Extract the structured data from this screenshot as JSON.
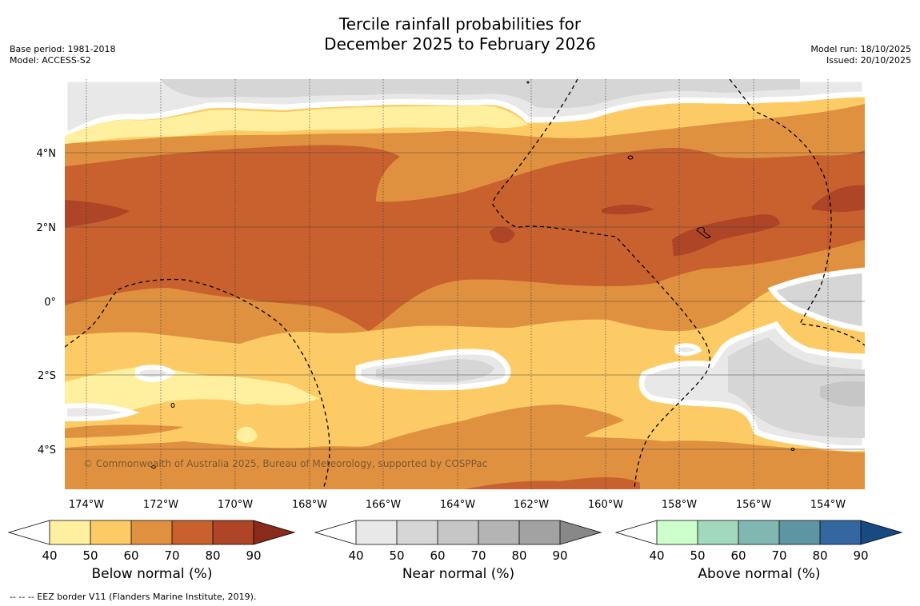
{
  "title_line1": "Tercile rainfall probabilities for",
  "title_line2": "December 2025 to February 2026",
  "base_period": "Base period: 1981-2018",
  "model": "Model: ACCESS-S2",
  "model_run": "Model run: 18/10/2025",
  "issued": "Issued: 20/10/2025",
  "copyright": "© Commonwealth of Australia 2025, Bureau of Meteorology, supported by COSPPac",
  "footnote": "--  --  -- EEZ border V11 (Flanders Marine Institute, 2019).",
  "lon_labels": [
    "174°W",
    "172°W",
    "170°W",
    "168°W",
    "166°W",
    "164°W",
    "162°W",
    "160°W",
    "158°W",
    "156°W",
    "154°W"
  ],
  "lat_labels": [
    "4°N",
    "2°N",
    "0°",
    "2°S",
    "4°S"
  ],
  "colorbars": [
    {
      "label": "Below normal (%)",
      "ticks": [
        "40",
        "50",
        "60",
        "70",
        "80",
        "90"
      ],
      "colors": [
        "#ffffff",
        "#fff0a0",
        "#fdcb66",
        "#e0913f",
        "#c8612e",
        "#ad4526",
        "#8a2a1a"
      ]
    },
    {
      "label": "Near normal (%)",
      "ticks": [
        "40",
        "50",
        "60",
        "70",
        "80",
        "90"
      ],
      "colors": [
        "#ffffff",
        "#e8e8e8",
        "#d6d6d6",
        "#c6c6c6",
        "#b4b4b4",
        "#a2a2a2",
        "#888888"
      ]
    },
    {
      "label": "Above normal (%)",
      "ticks": [
        "40",
        "50",
        "60",
        "70",
        "80",
        "90"
      ],
      "colors": [
        "#ffffff",
        "#ccffcc",
        "#a2d9bd",
        "#80b7b0",
        "#5e95a2",
        "#3466a0",
        "#174a80"
      ]
    }
  ],
  "map_colors": {
    "below50": "#fff0a0",
    "below60": "#fdcb66",
    "below70": "#e0913f",
    "below80": "#c8612e",
    "below90": "#ad4526",
    "near50": "#e8e8e8",
    "near60": "#d6d6d6",
    "near70": "#c6c6c6"
  }
}
